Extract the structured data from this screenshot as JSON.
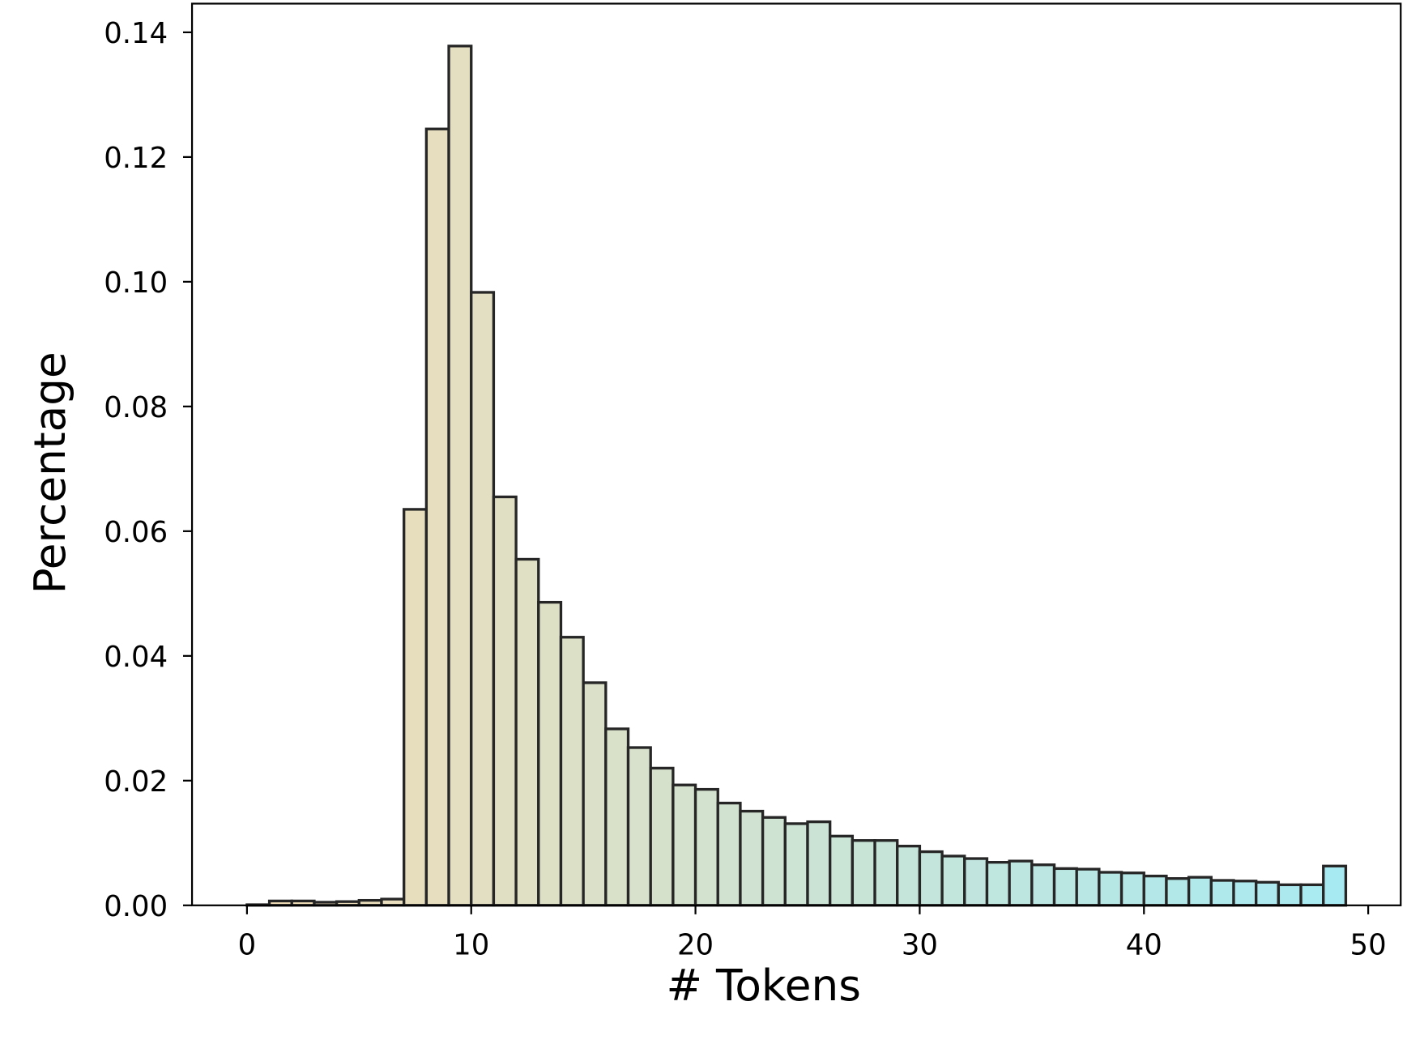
{
  "chart_data": {
    "type": "histogram",
    "xlabel": "# Tokens",
    "ylabel": "Percentage",
    "bins": [
      0,
      1,
      2,
      3,
      4,
      5,
      6,
      7,
      8,
      9,
      10,
      11,
      12,
      13,
      14,
      15,
      16,
      17,
      18,
      19,
      20,
      21,
      22,
      23,
      24,
      25,
      26,
      27,
      28,
      29,
      30,
      31,
      32,
      33,
      34,
      35,
      36,
      37,
      38,
      39,
      40,
      41,
      42,
      43,
      44,
      45,
      46,
      47,
      48,
      49
    ],
    "values": [
      0.0001,
      0.0007,
      0.0007,
      0.0005,
      0.0006,
      0.0008,
      0.001,
      0.0635,
      0.1245,
      0.1378,
      0.0983,
      0.0655,
      0.0555,
      0.0486,
      0.043,
      0.0357,
      0.0283,
      0.0253,
      0.022,
      0.0193,
      0.0186,
      0.0164,
      0.0151,
      0.0141,
      0.0131,
      0.0134,
      0.0111,
      0.0104,
      0.0104,
      0.0095,
      0.0086,
      0.0079,
      0.0075,
      0.0069,
      0.0071,
      0.0065,
      0.0059,
      0.0058,
      0.0053,
      0.0052,
      0.0047,
      0.0043,
      0.0045,
      0.004,
      0.0039,
      0.0037,
      0.0033,
      0.0033,
      0.0063
    ],
    "color_start": "#f2dcb5",
    "color_end": "#a8eaf2",
    "edgecolor": "#262626",
    "xlim": [
      -2.45,
      51.45
    ],
    "xticks": [
      0,
      10,
      20,
      30,
      40,
      50
    ],
    "ylim": [
      0,
      0.1446
    ],
    "yticks": [
      {
        "value": 0,
        "label": "0.00"
      },
      {
        "value": 0.02,
        "label": "0.02"
      },
      {
        "value": 0.04,
        "label": "0.04"
      },
      {
        "value": 0.06,
        "label": "0.06"
      },
      {
        "value": 0.08,
        "label": "0.08"
      },
      {
        "value": 0.1,
        "label": "0.10"
      },
      {
        "value": 0.12,
        "label": "0.12"
      },
      {
        "value": 0.14,
        "label": "0.14"
      }
    ]
  }
}
